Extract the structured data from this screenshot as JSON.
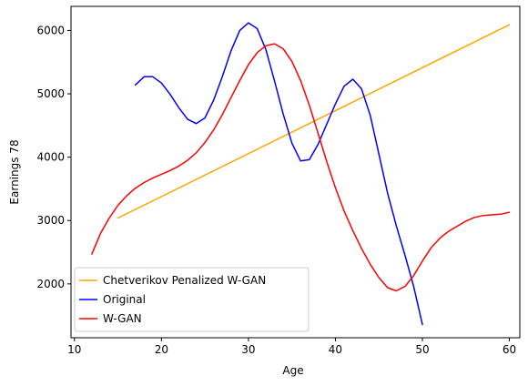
{
  "chart_data": {
    "type": "line",
    "title": "",
    "xlabel": "Age",
    "ylabel": "Earnings 78",
    "xlim": [
      9.6,
      61.2
    ],
    "ylim": [
      1150,
      6380
    ],
    "xticks": [
      10,
      20,
      30,
      40,
      50,
      60
    ],
    "yticks": [
      2000,
      3000,
      4000,
      5000,
      6000
    ],
    "legend_position": "lower-left",
    "grid": false,
    "series": [
      {
        "name": "Chetverikov Penalized W-GAN",
        "color": "#ffa500",
        "x": [
          15,
          60
        ],
        "y": [
          3040,
          6090
        ]
      },
      {
        "name": "Original",
        "color": "#0000ff",
        "x": [
          17,
          18,
          19,
          20,
          21,
          22,
          23,
          24,
          25,
          26,
          27,
          28,
          29,
          30,
          31,
          32,
          33,
          34,
          35,
          36,
          37,
          38,
          39,
          40,
          41,
          42,
          43,
          44,
          45,
          46,
          47,
          48,
          49,
          50
        ],
        "y": [
          5140,
          5270,
          5270,
          5170,
          4990,
          4780,
          4600,
          4530,
          4620,
          4900,
          5270,
          5680,
          6000,
          6120,
          6030,
          5700,
          5200,
          4680,
          4220,
          3940,
          3960,
          4200,
          4520,
          4840,
          5120,
          5230,
          5080,
          4660,
          4050,
          3430,
          2920,
          2450,
          1960,
          1360
        ]
      },
      {
        "name": "W-GAN",
        "color": "#ff0000",
        "x": [
          12,
          13,
          14,
          15,
          16,
          17,
          18,
          19,
          20,
          21,
          22,
          23,
          24,
          25,
          26,
          27,
          28,
          29,
          30,
          31,
          32,
          33,
          34,
          35,
          36,
          37,
          38,
          39,
          40,
          41,
          42,
          43,
          44,
          45,
          46,
          47,
          48,
          49,
          50,
          51,
          52,
          53,
          54,
          55,
          56,
          57,
          58,
          59,
          60
        ],
        "y": [
          2470,
          2800,
          3040,
          3240,
          3390,
          3510,
          3600,
          3670,
          3730,
          3790,
          3860,
          3950,
          4070,
          4230,
          4430,
          4670,
          4940,
          5210,
          5460,
          5650,
          5760,
          5790,
          5710,
          5510,
          5210,
          4820,
          4380,
          3930,
          3520,
          3150,
          2840,
          2560,
          2310,
          2100,
          1940,
          1890,
          1960,
          2130,
          2360,
          2570,
          2720,
          2830,
          2910,
          2990,
          3050,
          3080,
          3090,
          3100,
          3130
        ]
      }
    ]
  }
}
